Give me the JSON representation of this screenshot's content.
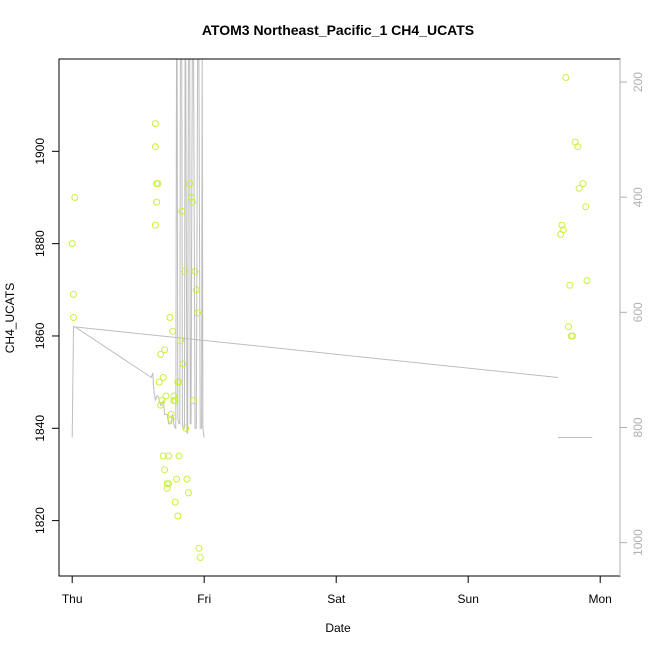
{
  "chart_data": {
    "type": "scatter",
    "title": "ATOM3 Northeast_Pacific_1 CH4_UCATS",
    "xlabel": "Date",
    "ylabel": "CH4_UCATS",
    "x_ticks": [
      "Thu",
      "Fri",
      "Sat",
      "Sun",
      "Mon"
    ],
    "xlim": [
      -0.1,
      4.15
    ],
    "ylim": [
      1808,
      1920
    ],
    "y_ticks": [
      1820,
      1840,
      1860,
      1880,
      1900
    ],
    "y2_ticks": [
      200,
      400,
      600,
      800,
      1000
    ],
    "y2lim": [
      1058,
      160
    ],
    "grid": false,
    "colors": {
      "points": "#c8f03c",
      "line": "#bdbdbd",
      "axis": "#000000",
      "axis_right": "#b0b0b0"
    },
    "series": [
      {
        "kind": "points",
        "x": [
          0.0,
          0.01,
          0.01,
          0.02,
          0.63,
          0.63,
          0.63,
          0.64,
          0.64,
          0.65,
          0.66,
          0.67,
          0.67,
          0.68,
          0.69,
          0.69,
          0.7,
          0.7,
          0.71,
          0.72,
          0.72,
          0.73,
          0.73,
          0.74,
          0.75,
          0.75,
          0.76,
          0.77,
          0.77,
          0.78,
          0.78,
          0.79,
          0.8,
          0.8,
          0.81,
          0.81,
          0.82,
          0.83,
          0.84,
          0.85,
          0.86,
          0.87,
          0.88,
          0.89,
          0.9,
          0.91,
          0.92,
          0.93,
          0.94,
          0.95,
          0.96,
          0.97,
          3.7,
          3.71,
          3.72,
          3.74,
          3.76,
          3.77,
          3.78,
          3.79,
          3.81,
          3.83,
          3.84,
          3.87,
          3.89,
          3.9
        ],
        "y": [
          1880,
          1869,
          1864,
          1890,
          1884,
          1906,
          1901,
          1893,
          1889,
          1893,
          1850,
          1845,
          1856,
          1846,
          1851,
          1834,
          1831,
          1857,
          1847,
          1828,
          1827,
          1828,
          1834,
          1864,
          1843,
          1842,
          1861,
          1847,
          1846,
          1846,
          1824,
          1829,
          1821,
          1850,
          1850,
          1834,
          1859,
          1887,
          1854,
          1874,
          1840,
          1829,
          1826,
          1893,
          1890,
          1889,
          1846,
          1874,
          1870,
          1865,
          1814,
          1812,
          1882,
          1884,
          1883,
          1916,
          1862,
          1871,
          1860,
          1860,
          1902,
          1901,
          1892,
          1893,
          1888,
          1872
        ]
      },
      {
        "kind": "line",
        "x": [
          0.0,
          0.01,
          0.02,
          0.6,
          0.6,
          0.61,
          0.62,
          0.63,
          0.64,
          0.65,
          0.66,
          0.67,
          0.68,
          0.69,
          0.7,
          0.71,
          0.72,
          0.73,
          0.74,
          0.75,
          0.76,
          0.77,
          0.78,
          0.785,
          0.79,
          0.795,
          0.8,
          0.81,
          0.815,
          0.82,
          0.83,
          0.835,
          0.84,
          0.85,
          0.855,
          0.86,
          0.87,
          0.875,
          0.88,
          0.89,
          0.895,
          0.9,
          0.91,
          0.92,
          0.93,
          0.94,
          0.95,
          0.96,
          0.97,
          0.98,
          0.985,
          0.99,
          1.0,
          3.68,
          3.69,
          3.7,
          3.71,
          3.72,
          3.73,
          3.74,
          3.75,
          3.76,
          3.77,
          3.78,
          3.79,
          3.8,
          3.81,
          3.82,
          3.83,
          3.84,
          3.85,
          3.86,
          3.87,
          3.88,
          3.89,
          3.9,
          3.91,
          3.92,
          3.93,
          3.94
        ],
        "y": [
          1838,
          1862,
          1862,
          1851,
          1851,
          1852,
          1848,
          1846,
          1847,
          1847,
          1846,
          1845,
          1845,
          1846,
          1843,
          1843,
          1843,
          1841,
          1841,
          1841,
          1843,
          1841,
          1840,
          1840,
          1920,
          1920,
          1842,
          1841,
          1841,
          1920,
          1920,
          1841,
          1840,
          1840,
          1920,
          1920,
          1839,
          1839,
          1920,
          1920,
          1841,
          1841,
          1920,
          1920,
          1840,
          1840,
          1920,
          1920,
          1840,
          1840,
          1920,
          1840,
          1838,
          1838,
          1838,
          1838,
          1838,
          1838,
          1838,
          1838,
          1838,
          1838,
          1838,
          1838,
          1838,
          1838,
          1838,
          1838,
          1838,
          1838,
          1838,
          1838,
          1838,
          1838,
          1838,
          1838,
          1838,
          1838,
          1838,
          1838
        ]
      }
    ]
  }
}
